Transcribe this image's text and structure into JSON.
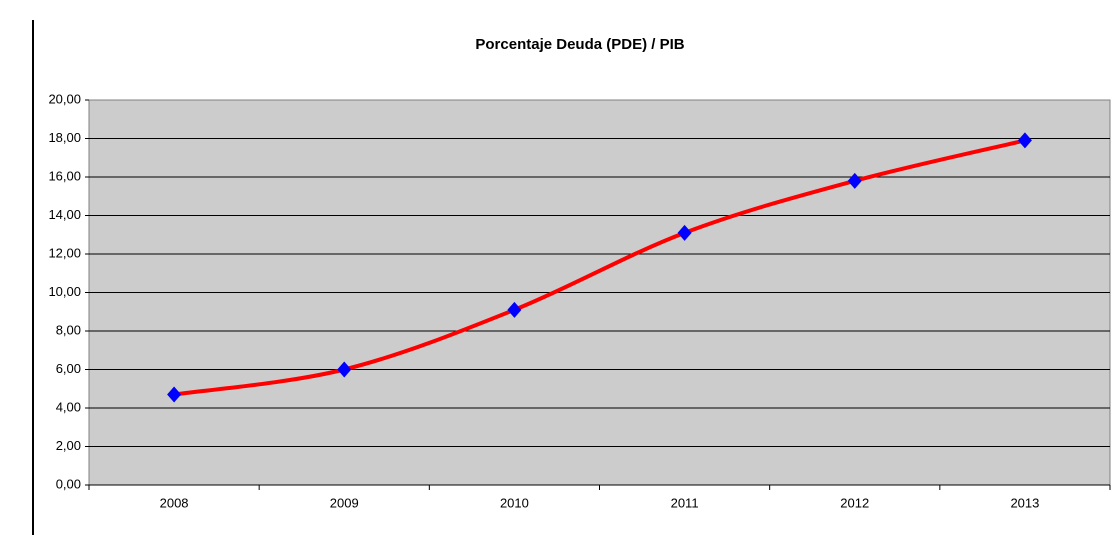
{
  "chart_data": {
    "type": "line",
    "title": "Porcentaje Deuda (PDE) / PIB",
    "categories": [
      "2008",
      "2009",
      "2010",
      "2011",
      "2012",
      "2013"
    ],
    "values": [
      4.7,
      6.0,
      9.1,
      13.1,
      15.8,
      17.9
    ],
    "color": "#ff0000",
    "marker_color": "#0000ff",
    "background": "#cccccc",
    "ylim": [
      0,
      20
    ],
    "yticks": [
      {
        "value": 0,
        "label": "0,00"
      },
      {
        "value": 2,
        "label": "2,00"
      },
      {
        "value": 4,
        "label": "4,00"
      },
      {
        "value": 6,
        "label": "6,00"
      },
      {
        "value": 8,
        "label": "8,00"
      },
      {
        "value": 10,
        "label": "10,00"
      },
      {
        "value": 12,
        "label": "12,00"
      },
      {
        "value": 14,
        "label": "14,00"
      },
      {
        "value": 16,
        "label": "16,00"
      },
      {
        "value": 18,
        "label": "18,00"
      },
      {
        "value": 20,
        "label": "20,00"
      }
    ],
    "grid": true,
    "smooth": true
  }
}
